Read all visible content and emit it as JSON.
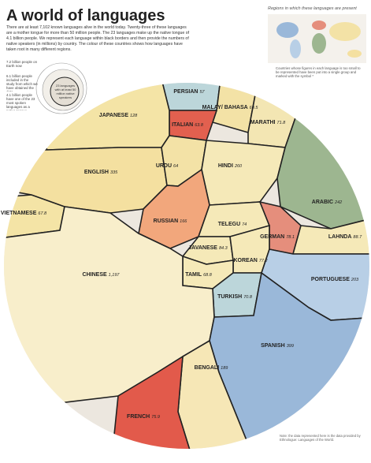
{
  "chart_data": {
    "type": "treemap",
    "title": "A world of languages",
    "subtitle": "There are at least 7,102 known languages alive in the world today. Twenty-three of these languages are a mother tongue for more than 50 million people. The 23 languages make up the native tongue of 4.1 billion people. We represent each language within black borders and then provide the numbers of native speakers (in millions) by country. The colour of these countries shows how languages have taken root in many different regions.",
    "legend_notes": [
      "7.2 billion people on Earth now",
      "6.1 billion people included in the study from which we have obtained the data",
      "4.1 billion people have one of the 23 most spoken languages as a native tongue",
      "23 languages with at least 50 million native speakers"
    ],
    "map_title": "Regions in which these languages are present",
    "map_note": "Countries whose figures in each language is too small to be represented have been put into a single group and marked with the symbol *",
    "note": "Note: the data represented here is the data provided by Ethnologue: Languages of the World.",
    "categories": [
      "PERSIAN",
      "MALAY/ BAHASA",
      "ITALIAN",
      "MARATHI",
      "JAPANESE",
      "VIETNAMESE",
      "ENGLISH",
      "URDU",
      "HINDI",
      "ARABIC",
      "RUSSIAN",
      "TELEGU",
      "JAVANESE",
      "GERMAN",
      "LAHNDA",
      "KOREAN",
      "TAMIL",
      "PORTUGUESE",
      "TURKISH",
      "CHINESE",
      "SPANISH",
      "BENGALI",
      "FRENCH"
    ],
    "values": [
      57,
      60.5,
      63.8,
      71.8,
      128,
      67.8,
      335,
      64,
      260,
      242,
      166,
      74,
      84.3,
      78.1,
      88.7,
      77.2,
      68.8,
      203,
      70.8,
      1197,
      399,
      189,
      75.9
    ],
    "value_labels": [
      "57",
      "60.5",
      "63.8",
      "71.8",
      "128",
      "67.8",
      "335",
      "64",
      "260",
      "242",
      "166",
      "74",
      "84.3",
      "78.1",
      "88.7",
      "77.2",
      "68.8",
      "203",
      "70.8",
      "1,197",
      "399",
      "189",
      "75.9"
    ],
    "colors": [
      "#bcd6da",
      "#f3e2a6",
      "#e2604f",
      "#f3e6b3",
      "#f4e4a6",
      "#f4e4a6",
      "#f4e0a0",
      "#f3e2a6",
      "#f5e9b8",
      "#9db690",
      "#f2a77c",
      "#f5e9b8",
      "#f5e9b8",
      "#e58e7c",
      "#f5e9b8",
      "#f5e9b8",
      "#f5e9b8",
      "#b8cfe6",
      "#bcd6da",
      "#f8eecb",
      "#9ab8d9",
      "#f6e7b6",
      "#e25a4b"
    ]
  }
}
